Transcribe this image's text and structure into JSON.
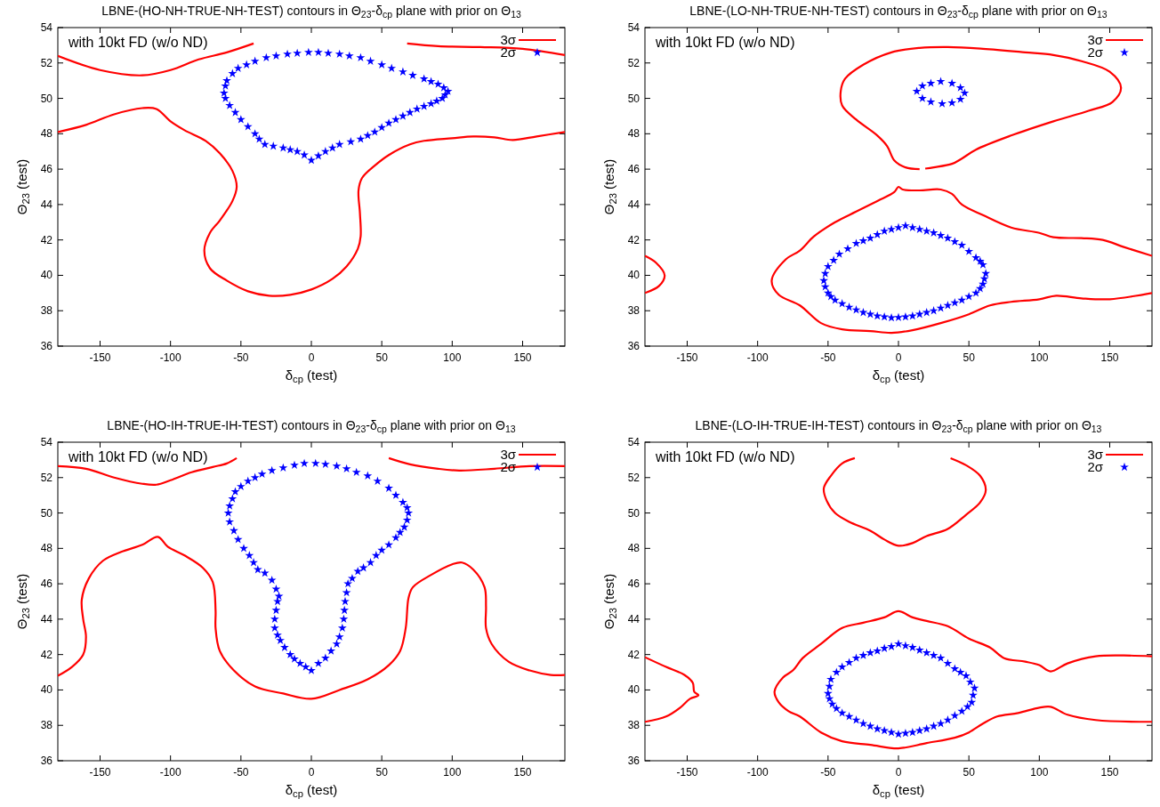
{
  "chart_data": [
    {
      "type": "line",
      "title": "LBNE-(HO-NH-TRUE-NH-TEST) contours in Θ$_{23}$-δ$_{cp}$ plane with prior on Θ$_{13}$",
      "xlabel": "δ$_{cp}$ (test)",
      "ylabel": "Θ$_{23}$ (test)",
      "xlim": [
        -180,
        180
      ],
      "ylim": [
        36,
        54
      ],
      "xticks": [
        -150,
        -100,
        -50,
        0,
        50,
        100,
        150
      ],
      "yticks": [
        36,
        38,
        40,
        42,
        44,
        46,
        48,
        50,
        52,
        54
      ],
      "legend": "top right",
      "annotations": [
        "with 10kt FD (w/o ND)"
      ],
      "series": [
        {
          "type": "line",
          "name": "3σ",
          "color": "#ff0000",
          "x": [
            -180,
            -150,
            -120,
            -100,
            -80,
            -60,
            -41
          ],
          "values": [
            52.4,
            51.6,
            51.3,
            51.6,
            52.2,
            52.6,
            53.1
          ]
        },
        {
          "type": "line",
          "color": "#ff0000",
          "x": [
            68,
            90,
            120,
            150,
            180
          ],
          "values": [
            53.1,
            52.95,
            52.9,
            52.8,
            52.45
          ]
        },
        {
          "type": "line",
          "color": "#ff0000",
          "x": [
            -180,
            -160,
            -140,
            -120,
            -110,
            -100,
            -90,
            -75,
            -65,
            -56,
            -53,
            -56,
            -65,
            -72,
            -76,
            -72,
            -60,
            -45,
            -30,
            -15,
            0,
            15,
            25,
            33,
            35,
            34.5,
            33.5,
            36,
            45,
            55,
            70,
            80,
            100,
            115,
            130,
            143,
            160,
            180
          ],
          "values": [
            48.1,
            48.5,
            49.1,
            49.45,
            49.4,
            48.7,
            48.2,
            47.6,
            46.9,
            45.9,
            45,
            44.2,
            43.1,
            42.4,
            41.4,
            40.4,
            39.7,
            39.1,
            38.85,
            38.9,
            39.2,
            39.8,
            40.5,
            41.5,
            42.2,
            43.5,
            44.8,
            45.5,
            46.2,
            46.8,
            47.4,
            47.6,
            47.75,
            47.85,
            47.8,
            47.65,
            47.85,
            48.1
          ]
        },
        {
          "type": "scatter",
          "name": "2σ",
          "color": "#0000ff",
          "marker": "star",
          "x": [
            0,
            -5,
            -10,
            -15,
            -20,
            -27,
            -33,
            -37,
            -40,
            -45,
            -50,
            -54,
            -58,
            -61,
            -62,
            -61,
            -60,
            -56,
            -52,
            -46,
            -40,
            -32,
            -25,
            -17,
            -10,
            -2,
            5,
            12,
            20,
            27,
            35,
            42,
            50,
            57,
            65,
            72,
            80,
            85,
            90,
            94,
            97,
            95,
            93,
            89,
            85,
            80,
            75,
            70,
            65,
            60,
            55,
            50,
            45,
            40,
            35,
            28,
            20,
            15,
            10,
            5
          ],
          "values": [
            46.5,
            46.8,
            47.0,
            47.1,
            47.2,
            47.3,
            47.4,
            47.7,
            48.0,
            48.4,
            48.8,
            49.2,
            49.6,
            50.0,
            50.3,
            50.7,
            51.0,
            51.4,
            51.7,
            51.9,
            52.1,
            52.3,
            52.4,
            52.5,
            52.55,
            52.6,
            52.6,
            52.55,
            52.5,
            52.4,
            52.3,
            52.1,
            51.9,
            51.7,
            51.5,
            51.3,
            51.1,
            50.95,
            50.8,
            50.6,
            50.4,
            50.2,
            50.0,
            49.85,
            49.7,
            49.55,
            49.4,
            49.2,
            49.0,
            48.8,
            48.6,
            48.35,
            48.1,
            47.9,
            47.7,
            47.55,
            47.4,
            47.2,
            47.0,
            46.75
          ]
        }
      ]
    },
    {
      "type": "line",
      "title": "LBNE-(LO-NH-TRUE-NH-TEST) contours in Θ$_{23}$-δ$_{cp}$ plane with prior on Θ$_{13}$",
      "xlabel": "δ$_{cp}$ (test)",
      "ylabel": "Θ$_{23}$ (test)",
      "xlim": [
        -180,
        180
      ],
      "ylim": [
        36,
        54
      ],
      "xticks": [
        -150,
        -100,
        -50,
        0,
        50,
        100,
        150
      ],
      "yticks": [
        36,
        38,
        40,
        42,
        44,
        46,
        48,
        50,
        52,
        54
      ],
      "legend": "top right",
      "annotations": [
        "with 10kt FD (w/o ND)"
      ],
      "series": [
        {
          "type": "line",
          "name": "3σ",
          "color": "#ff0000",
          "x": [
            15,
            5,
            -3,
            -8,
            -15,
            -30,
            -40,
            -41,
            -38,
            -25,
            -5,
            15,
            35,
            60,
            90,
            110,
            130,
            150,
            158,
            152,
            135,
            110,
            80,
            55,
            45,
            38,
            25,
            19
          ],
          "values": [
            46.0,
            46.1,
            46.5,
            47.3,
            47.9,
            48.8,
            49.6,
            50.4,
            51.1,
            51.9,
            52.6,
            52.85,
            52.9,
            52.8,
            52.6,
            52.45,
            52.1,
            51.5,
            50.6,
            49.8,
            49.3,
            48.7,
            47.9,
            47.1,
            46.6,
            46.3,
            46.1,
            46.03
          ]
        },
        {
          "type": "line",
          "color": "#ff0000",
          "x": [
            180,
            160,
            145,
            130,
            110,
            100,
            80,
            60,
            45,
            38,
            30,
            15,
            3,
            0,
            -3,
            -15,
            -30,
            -45,
            -60,
            -70,
            -80,
            -90,
            -85,
            -70,
            -55,
            -40,
            -20,
            -5,
            10,
            30,
            50,
            65,
            80,
            100,
            112,
            130,
            150,
            180
          ],
          "values": [
            41.1,
            41.6,
            42.0,
            42.1,
            42.15,
            42.4,
            42.7,
            43.4,
            44.0,
            44.6,
            44.85,
            44.8,
            44.85,
            45.0,
            44.7,
            44.2,
            43.6,
            43.0,
            42.2,
            41.4,
            40.9,
            39.7,
            38.9,
            38.3,
            37.3,
            36.95,
            36.85,
            36.75,
            36.9,
            37.3,
            37.8,
            38.3,
            38.5,
            38.65,
            38.85,
            38.7,
            38.65,
            39.0
          ]
        },
        {
          "type": "line",
          "color": "#ff0000",
          "x": [
            -180,
            -172,
            -166,
            -170,
            -180
          ],
          "values": [
            41.1,
            40.7,
            40.0,
            39.4,
            39.0
          ]
        },
        {
          "type": "scatter",
          "name": "2σ",
          "color": "#0000ff",
          "marker": "star",
          "x": [
            13,
            17,
            23,
            30,
            38,
            44,
            47,
            44,
            38,
            31,
            23,
            17
          ],
          "values": [
            50.4,
            50.7,
            50.85,
            50.95,
            50.85,
            50.6,
            50.3,
            49.95,
            49.75,
            49.7,
            49.8,
            50.0
          ]
        },
        {
          "type": "scatter",
          "color": "#0000ff",
          "marker": "star",
          "x": [
            -53,
            -52,
            -50,
            -46,
            -42,
            -36,
            -30,
            -25,
            -20,
            -15,
            -10,
            -5,
            0,
            5,
            10,
            15,
            20,
            25,
            30,
            35,
            40,
            45,
            50,
            55,
            58,
            60,
            62,
            61,
            60,
            58,
            55,
            50,
            45,
            40,
            35,
            30,
            25,
            20,
            15,
            10,
            5,
            0,
            -5,
            -10,
            -15,
            -20,
            -25,
            -30,
            -35,
            -40,
            -45,
            -48,
            -50,
            -52
          ],
          "values": [
            39.7,
            40.1,
            40.5,
            40.85,
            41.2,
            41.5,
            41.8,
            41.95,
            42.1,
            42.3,
            42.5,
            42.6,
            42.7,
            42.8,
            42.7,
            42.6,
            42.5,
            42.4,
            42.25,
            42.1,
            41.9,
            41.7,
            41.35,
            41.0,
            40.8,
            40.6,
            40.1,
            39.8,
            39.5,
            39.25,
            39.0,
            38.8,
            38.6,
            38.45,
            38.3,
            38.15,
            38.0,
            37.9,
            37.8,
            37.7,
            37.65,
            37.62,
            37.6,
            37.65,
            37.7,
            37.8,
            37.9,
            38.05,
            38.2,
            38.4,
            38.6,
            38.8,
            39.0,
            39.35
          ]
        }
      ]
    },
    {
      "type": "line",
      "title": "LBNE-(HO-IH-TRUE-IH-TEST) contours in Θ$_{23}$-δ$_{cp}$ plane with prior on Θ$_{13}$",
      "xlabel": "δ$_{cp}$ (test)",
      "ylabel": "Θ$_{23}$ (test)",
      "xlim": [
        -180,
        180
      ],
      "ylim": [
        36,
        54
      ],
      "xticks": [
        -150,
        -100,
        -50,
        0,
        50,
        100,
        150
      ],
      "yticks": [
        36,
        38,
        40,
        42,
        44,
        46,
        48,
        50,
        52,
        54
      ],
      "legend": "top right",
      "annotations": [
        "with 10kt FD (w/o ND)"
      ],
      "series": [
        {
          "type": "line",
          "name": "3σ",
          "color": "#ff0000",
          "x": [
            -180,
            -160,
            -140,
            -120,
            -110,
            -100,
            -85,
            -70,
            -60,
            -53
          ],
          "values": [
            52.65,
            52.5,
            52.0,
            51.65,
            51.6,
            51.85,
            52.3,
            52.6,
            52.8,
            53.1
          ]
        },
        {
          "type": "line",
          "color": "#ff0000",
          "x": [
            55,
            70,
            90,
            105,
            130,
            155,
            180
          ],
          "values": [
            53.1,
            52.75,
            52.5,
            52.4,
            52.5,
            52.65,
            52.65
          ]
        },
        {
          "type": "line",
          "color": "#ff0000",
          "x": [
            -180,
            -170,
            -162,
            -160,
            -162,
            -163,
            -158,
            -148,
            -135,
            -120,
            -109,
            -102,
            -90,
            -77,
            -70,
            -68,
            -68,
            -65,
            -55,
            -40,
            -20,
            0,
            20,
            40,
            55,
            63,
            67,
            69,
            72,
            85,
            100,
            107,
            115,
            123,
            124,
            124,
            128,
            140,
            155,
            170,
            180
          ],
          "values": [
            40.8,
            41.3,
            42.0,
            43.0,
            44.0,
            45.1,
            46.3,
            47.3,
            47.8,
            48.2,
            48.65,
            48.1,
            47.6,
            46.9,
            46.1,
            44.5,
            43.5,
            42.2,
            41.1,
            40.2,
            39.8,
            39.5,
            40.0,
            40.6,
            41.4,
            42.2,
            43.5,
            45.2,
            45.8,
            46.5,
            47.1,
            47.2,
            46.8,
            45.8,
            44.7,
            43.5,
            42.6,
            41.6,
            41.1,
            40.85,
            40.85
          ]
        },
        {
          "type": "scatter",
          "name": "2σ",
          "color": "#0000ff",
          "marker": "star",
          "x": [
            0,
            -4,
            -8,
            -12,
            -15,
            -19,
            -22,
            -24,
            -26,
            -26,
            -25,
            -24,
            -23,
            -25,
            -28,
            -33,
            -38,
            -41,
            -44,
            -48,
            -52,
            -55,
            -58,
            -59,
            -58,
            -56,
            -54,
            -50,
            -45,
            -40,
            -35,
            -28,
            -20,
            -12,
            -5,
            3,
            10,
            18,
            25,
            32,
            40,
            47,
            55,
            60,
            65,
            68,
            69,
            68,
            66,
            63,
            60,
            55,
            50,
            46,
            42,
            37,
            33,
            29,
            26,
            25,
            24,
            23.5,
            23,
            22,
            20,
            18,
            14,
            10,
            5
          ],
          "values": [
            41.1,
            41.3,
            41.5,
            41.75,
            42.0,
            42.4,
            42.8,
            43.1,
            43.5,
            44.0,
            44.5,
            45.0,
            45.3,
            45.7,
            46.2,
            46.6,
            46.8,
            47.2,
            47.6,
            48.0,
            48.5,
            49.0,
            49.5,
            50.0,
            50.4,
            50.8,
            51.2,
            51.5,
            51.8,
            52.0,
            52.2,
            52.4,
            52.55,
            52.7,
            52.8,
            52.8,
            52.75,
            52.65,
            52.5,
            52.3,
            52.1,
            51.8,
            51.4,
            51.0,
            50.6,
            50.3,
            50.0,
            49.6,
            49.2,
            48.9,
            48.6,
            48.2,
            47.9,
            47.6,
            47.2,
            46.9,
            46.7,
            46.3,
            46.0,
            45.5,
            45.0,
            44.5,
            44.0,
            43.5,
            43.0,
            42.6,
            42.2,
            41.8,
            41.5
          ]
        }
      ]
    },
    {
      "type": "line",
      "title": "LBNE-(LO-IH-TRUE-IH-TEST) contours in Θ$_{23}$-δ$_{cp}$ plane with prior on Θ$_{13}$",
      "xlabel": "δ$_{cp}$ (test)",
      "ylabel": "Θ$_{23}$ (test)",
      "xlim": [
        -180,
        180
      ],
      "ylim": [
        36,
        54
      ],
      "xticks": [
        -150,
        -100,
        -50,
        0,
        50,
        100,
        150
      ],
      "yticks": [
        36,
        38,
        40,
        42,
        44,
        46,
        48,
        50,
        52,
        54
      ],
      "legend": "top right",
      "annotations": [
        "with 10kt FD (w/o ND)"
      ],
      "series": [
        {
          "type": "line",
          "name": "3σ",
          "color": "#ff0000",
          "x": [
            -31,
            -40,
            -48,
            -53,
            -51,
            -45,
            -35,
            -20,
            -10,
            0,
            10,
            20,
            35,
            48,
            58,
            62,
            58,
            48,
            37
          ],
          "values": [
            53.1,
            52.8,
            52.1,
            51.4,
            50.7,
            50.0,
            49.5,
            49.0,
            48.5,
            48.15,
            48.3,
            48.7,
            49.1,
            49.9,
            50.6,
            51.3,
            52.1,
            52.7,
            53.1
          ]
        },
        {
          "type": "line",
          "color": "#ff0000",
          "x": [
            -180,
            -165,
            -152,
            -146,
            -145,
            -142,
            -148,
            -155,
            -165,
            -180
          ],
          "values": [
            41.85,
            41.3,
            40.85,
            40.4,
            39.9,
            39.7,
            39.5,
            39.0,
            38.5,
            38.2
          ]
        },
        {
          "type": "line",
          "color": "#ff0000",
          "x": [
            180,
            160,
            140,
            120,
            108,
            100,
            90,
            75,
            65,
            50,
            35,
            20,
            10,
            0,
            -10,
            -25,
            -40,
            -55,
            -68,
            -75,
            -82,
            -88,
            -85,
            -78,
            -70,
            -55,
            -40,
            -20,
            0,
            20,
            40,
            50,
            60,
            70,
            85,
            100,
            108,
            120,
            140,
            180
          ],
          "values": [
            41.9,
            41.95,
            41.9,
            41.5,
            41.05,
            41.4,
            41.6,
            41.8,
            42.4,
            42.9,
            43.6,
            43.9,
            44.1,
            44.45,
            44.1,
            43.8,
            43.5,
            42.6,
            41.8,
            41.1,
            40.7,
            39.9,
            39.3,
            38.8,
            38.5,
            37.6,
            37.1,
            36.9,
            36.7,
            37.0,
            37.3,
            37.6,
            38.1,
            38.5,
            38.7,
            39.0,
            39.05,
            38.6,
            38.3,
            38.2
          ]
        },
        {
          "type": "scatter",
          "name": "2σ",
          "color": "#0000ff",
          "marker": "star",
          "x": [
            -50,
            -49,
            -48,
            -44,
            -40,
            -35,
            -30,
            -25,
            -20,
            -15,
            -10,
            -5,
            0,
            5,
            10,
            15,
            20,
            25,
            30,
            35,
            40,
            44,
            48,
            51,
            54,
            53,
            52,
            49,
            45,
            40,
            35,
            30,
            25,
            20,
            15,
            10,
            5,
            0,
            -5,
            -10,
            -15,
            -20,
            -25,
            -30,
            -35,
            -40,
            -44,
            -47,
            -49
          ],
          "values": [
            39.8,
            40.2,
            40.6,
            41.0,
            41.3,
            41.55,
            41.8,
            41.95,
            42.1,
            42.2,
            42.35,
            42.45,
            42.6,
            42.5,
            42.4,
            42.25,
            42.1,
            41.95,
            41.8,
            41.5,
            41.2,
            41.0,
            40.8,
            40.45,
            40.1,
            39.7,
            39.3,
            39.05,
            38.8,
            38.55,
            38.3,
            38.1,
            37.95,
            37.8,
            37.7,
            37.6,
            37.55,
            37.5,
            37.6,
            37.7,
            37.8,
            37.95,
            38.1,
            38.3,
            38.5,
            38.7,
            38.95,
            39.2,
            39.5
          ]
        }
      ]
    }
  ]
}
